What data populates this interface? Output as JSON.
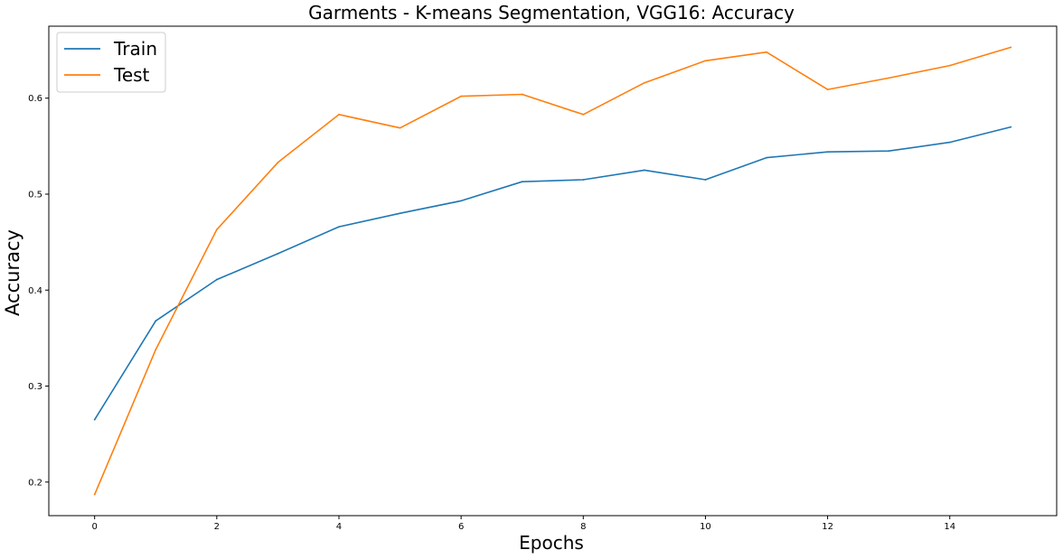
{
  "chart_data": {
    "type": "line",
    "title": "Garments - K-means Segmentation, VGG16: Accuracy",
    "xlabel": "Epochs",
    "ylabel": "Accuracy",
    "xlim": [
      -0.75,
      15.75
    ],
    "ylim": [
      0.165,
      0.675
    ],
    "xticks": [
      0,
      2,
      4,
      6,
      8,
      10,
      12,
      14
    ],
    "yticks": [
      0.2,
      0.3,
      0.4,
      0.5,
      0.6
    ],
    "x": [
      0,
      1,
      2,
      3,
      4,
      5,
      6,
      7,
      8,
      9,
      10,
      11,
      12,
      13,
      14,
      15
    ],
    "series": [
      {
        "name": "Train",
        "color": "#1f77b4",
        "values": [
          0.265,
          0.368,
          0.411,
          0.438,
          0.466,
          0.48,
          0.493,
          0.513,
          0.515,
          0.525,
          0.515,
          0.538,
          0.544,
          0.545,
          0.554,
          0.57
        ]
      },
      {
        "name": "Test",
        "color": "#ff7f0e",
        "values": [
          0.187,
          0.338,
          0.463,
          0.533,
          0.583,
          0.569,
          0.602,
          0.604,
          0.583,
          0.616,
          0.639,
          0.648,
          0.609,
          0.621,
          0.634,
          0.653
        ]
      }
    ],
    "grid": false,
    "legend": "upper-left"
  }
}
